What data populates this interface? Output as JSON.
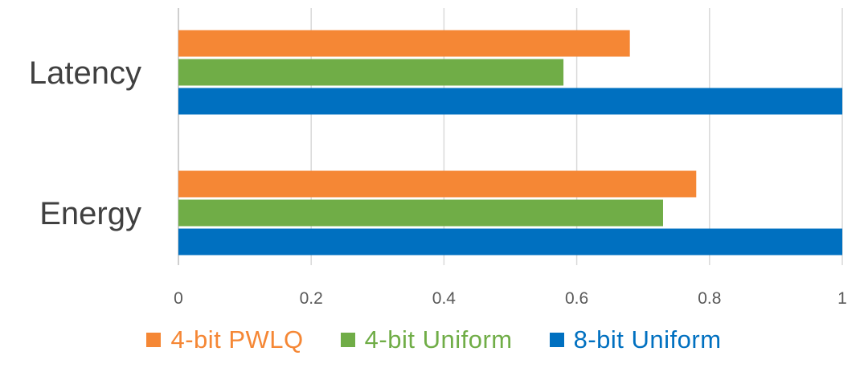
{
  "chart_data": {
    "type": "bar",
    "orientation": "horizontal",
    "categories": [
      "Latency",
      "Energy"
    ],
    "series": [
      {
        "name": "4-bit PWLQ",
        "color": "#F58735",
        "values": [
          0.68,
          0.78
        ]
      },
      {
        "name": "4-bit Uniform",
        "color": "#70AD47",
        "values": [
          0.58,
          0.73
        ]
      },
      {
        "name": "8-bit Uniform",
        "color": "#0070C0",
        "values": [
          1.0,
          1.0
        ]
      }
    ],
    "x_ticks": [
      "0",
      "0.2",
      "0.4",
      "0.6",
      "0.8",
      "1"
    ],
    "xlim": [
      0,
      1
    ],
    "grid": "vertical",
    "legend_position": "bottom"
  }
}
